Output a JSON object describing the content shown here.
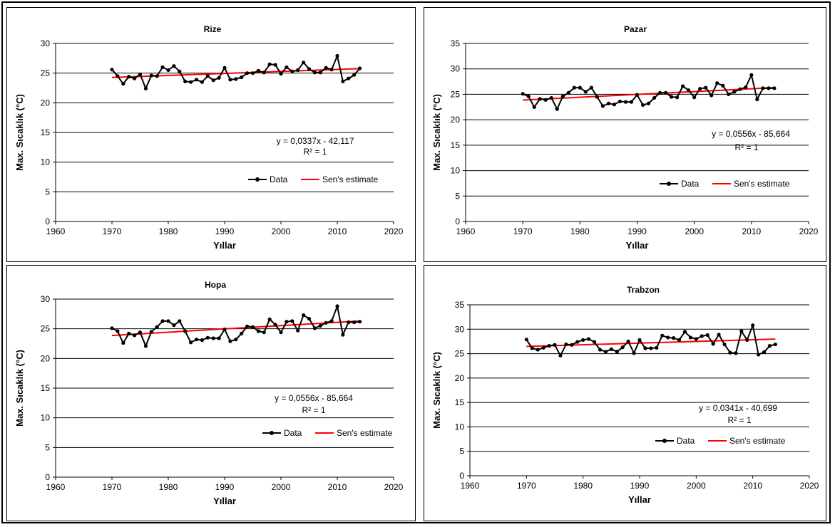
{
  "x_axis_label": "Yıllar",
  "y_axis_label": "Max. Sıcaklık (°C)",
  "legend": {
    "data_label": "Data",
    "trend_label": "Sen's estimate"
  },
  "colors": {
    "data": "#000000",
    "trend": "#ff0000",
    "grid": "#000000"
  },
  "x_ticks": [
    1960,
    1970,
    1980,
    1990,
    2000,
    2010,
    2020
  ],
  "chart_data": [
    {
      "type": "line",
      "title": "Rize",
      "xlabel": "Yıllar",
      "ylabel": "Max. Sıcaklık (°C)",
      "xlim": [
        1960,
        2020
      ],
      "ylim": [
        0,
        30
      ],
      "y_ticks": [
        0,
        5,
        10,
        15,
        20,
        25,
        30
      ],
      "grid": true,
      "legend_position": "bottom-right",
      "equation": "y = 0,0337x - 42,117",
      "r_squared": "R² = 1",
      "trend": {
        "slope": 0.0337,
        "intercept": -42.117,
        "x_range": [
          1970,
          2014
        ]
      },
      "series": [
        {
          "name": "Data",
          "x": [
            1970,
            1971,
            1972,
            1973,
            1974,
            1975,
            1976,
            1977,
            1978,
            1979,
            1980,
            1981,
            1982,
            1983,
            1984,
            1985,
            1986,
            1987,
            1988,
            1989,
            1990,
            1991,
            1992,
            1993,
            1994,
            1995,
            1996,
            1997,
            1998,
            1999,
            2000,
            2001,
            2002,
            2003,
            2004,
            2005,
            2006,
            2007,
            2008,
            2009,
            2010,
            2011,
            2012,
            2013,
            2014
          ],
          "values": [
            25.6,
            24.5,
            23.2,
            24.4,
            24.1,
            24.8,
            22.4,
            24.6,
            24.5,
            26.0,
            25.5,
            26.2,
            25.3,
            23.6,
            23.5,
            23.9,
            23.5,
            24.5,
            23.8,
            24.2,
            25.9,
            23.9,
            24.0,
            24.3,
            25.0,
            25.0,
            25.4,
            25.1,
            26.5,
            26.4,
            24.9,
            26.0,
            25.3,
            25.5,
            26.8,
            25.7,
            25.1,
            25.1,
            25.9,
            25.6,
            27.9,
            23.6,
            24.1,
            24.7,
            25.8
          ]
        }
      ]
    },
    {
      "type": "line",
      "title": "Pazar",
      "xlabel": "Yıllar",
      "ylabel": "Max. Sıcaklık (°C)",
      "xlim": [
        1960,
        2020
      ],
      "ylim": [
        0,
        35
      ],
      "y_ticks": [
        0,
        5,
        10,
        15,
        20,
        25,
        30,
        35
      ],
      "grid": true,
      "legend_position": "bottom-right",
      "equation": "y = 0,0556x - 85,664",
      "r_squared": "R² = 1",
      "trend": {
        "slope": 0.0556,
        "intercept": -85.664,
        "x_range": [
          1970,
          2014
        ]
      },
      "series": [
        {
          "name": "Data",
          "x": [
            1970,
            1971,
            1972,
            1973,
            1974,
            1975,
            1976,
            1977,
            1978,
            1979,
            1980,
            1981,
            1982,
            1983,
            1984,
            1985,
            1986,
            1987,
            1988,
            1989,
            1990,
            1991,
            1992,
            1993,
            1994,
            1995,
            1996,
            1997,
            1998,
            1999,
            2000,
            2001,
            2002,
            2003,
            2004,
            2005,
            2006,
            2007,
            2008,
            2009,
            2010,
            2011,
            2012,
            2013,
            2014
          ],
          "values": [
            25.1,
            24.6,
            22.5,
            24.1,
            23.9,
            24.3,
            22.1,
            24.6,
            25.3,
            26.3,
            26.3,
            25.5,
            26.3,
            24.5,
            22.7,
            23.2,
            23.0,
            23.6,
            23.5,
            23.5,
            24.9,
            22.9,
            23.2,
            24.3,
            25.3,
            25.3,
            24.5,
            24.4,
            26.6,
            25.8,
            24.4,
            26.1,
            26.3,
            24.8,
            27.2,
            26.7,
            25.0,
            25.5,
            26.0,
            26.4,
            28.8,
            24.0,
            26.2,
            26.2,
            26.2
          ]
        }
      ]
    },
    {
      "type": "line",
      "title": "Hopa",
      "xlabel": "Yıllar",
      "ylabel": "Max. Sıcaklık (°C)",
      "xlim": [
        1960,
        2020
      ],
      "ylim": [
        0,
        30
      ],
      "y_ticks": [
        0,
        5,
        10,
        15,
        20,
        25,
        30
      ],
      "grid": true,
      "legend_position": "bottom-right",
      "equation": "y = 0,0556x - 85,664",
      "r_squared": "R² = 1",
      "trend": {
        "slope": 0.0556,
        "intercept": -85.664,
        "x_range": [
          1970,
          2014
        ]
      },
      "series": [
        {
          "name": "Data",
          "x": [
            1970,
            1971,
            1972,
            1973,
            1974,
            1975,
            1976,
            1977,
            1978,
            1979,
            1980,
            1981,
            1982,
            1983,
            1984,
            1985,
            1986,
            1987,
            1988,
            1989,
            1990,
            1991,
            1992,
            1993,
            1994,
            1995,
            1996,
            1997,
            1998,
            1999,
            2000,
            2001,
            2002,
            2003,
            2004,
            2005,
            2006,
            2007,
            2008,
            2009,
            2010,
            2011,
            2012,
            2013,
            2014
          ],
          "values": [
            25.1,
            24.6,
            22.6,
            24.2,
            23.9,
            24.4,
            22.1,
            24.5,
            25.3,
            26.3,
            26.3,
            25.6,
            26.3,
            24.6,
            22.7,
            23.2,
            23.1,
            23.5,
            23.4,
            23.4,
            24.9,
            22.9,
            23.2,
            24.2,
            25.4,
            25.3,
            24.6,
            24.4,
            26.6,
            25.7,
            24.4,
            26.2,
            26.3,
            24.7,
            27.3,
            26.7,
            25.1,
            25.5,
            26.0,
            26.3,
            28.8,
            24.0,
            26.1,
            26.1,
            26.2
          ]
        }
      ]
    },
    {
      "type": "line",
      "title": "Trabzon",
      "xlabel": "Yıllar",
      "ylabel": "Max. Sıcaklık (°C)",
      "xlim": [
        1960,
        2020
      ],
      "ylim": [
        0,
        35
      ],
      "y_ticks": [
        0,
        5,
        10,
        15,
        20,
        25,
        30,
        35
      ],
      "grid": true,
      "legend_position": "bottom-right",
      "equation": "y = 0,0341x - 40,699",
      "r_squared": "R² = 1",
      "trend": {
        "slope": 0.0341,
        "intercept": -40.699,
        "x_range": [
          1970,
          2014
        ]
      },
      "series": [
        {
          "name": "Data",
          "x": [
            1970,
            1971,
            1972,
            1973,
            1974,
            1975,
            1976,
            1977,
            1978,
            1979,
            1980,
            1981,
            1982,
            1983,
            1984,
            1985,
            1986,
            1987,
            1988,
            1989,
            1990,
            1991,
            1992,
            1993,
            1994,
            1995,
            1996,
            1997,
            1998,
            1999,
            2000,
            2001,
            2002,
            2003,
            2004,
            2005,
            2006,
            2007,
            2008,
            2009,
            2010,
            2011,
            2012,
            2013,
            2014
          ],
          "values": [
            27.9,
            26.1,
            25.8,
            26.2,
            26.6,
            26.8,
            24.6,
            26.9,
            26.8,
            27.4,
            27.8,
            28.0,
            27.4,
            25.8,
            25.4,
            25.9,
            25.4,
            26.3,
            27.5,
            25.1,
            27.8,
            26.1,
            26.1,
            26.2,
            28.7,
            28.3,
            28.2,
            27.8,
            29.5,
            28.3,
            28.0,
            28.6,
            28.8,
            27.0,
            28.9,
            26.9,
            25.2,
            25.1,
            29.6,
            27.8,
            30.8,
            24.8,
            25.3,
            26.6,
            26.9
          ]
        }
      ]
    }
  ]
}
